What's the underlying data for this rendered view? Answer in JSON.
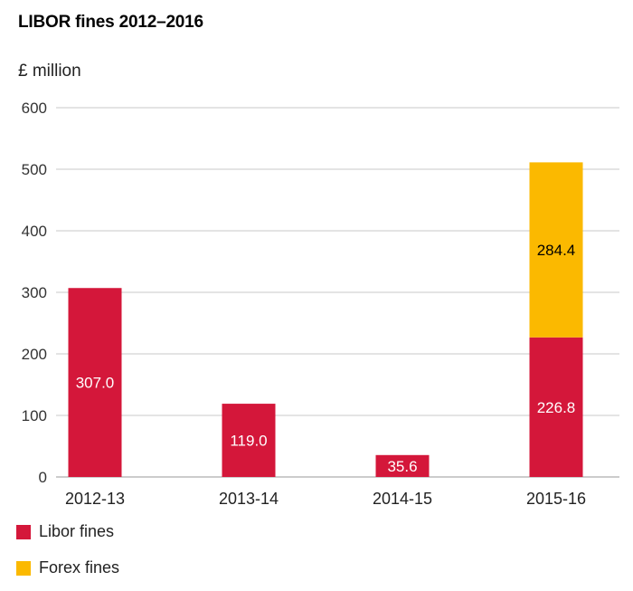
{
  "chart_data": {
    "type": "bar",
    "stacked": true,
    "title": "LIBOR fines 2012–2016",
    "ylabel": "£ million",
    "ylim": [
      0,
      600
    ],
    "yticks": [
      0,
      100,
      200,
      300,
      400,
      500,
      600
    ],
    "grid": true,
    "legend_position": "bottom-left",
    "categories": [
      "2012-13",
      "2013-14",
      "2014-15",
      "2015-16"
    ],
    "series": [
      {
        "name": "Libor fines",
        "color": "#d4173a",
        "label_color": "#ffffff",
        "values": [
          307.0,
          119.0,
          35.6,
          226.8
        ],
        "labels": [
          "307.0",
          "119.0",
          "35.6",
          "226.8"
        ]
      },
      {
        "name": "Forex fines",
        "color": "#fbb900",
        "label_color": "#000000",
        "values": [
          0,
          0,
          0,
          284.4
        ],
        "labels": [
          "",
          "",
          "",
          "284.4"
        ]
      }
    ]
  }
}
